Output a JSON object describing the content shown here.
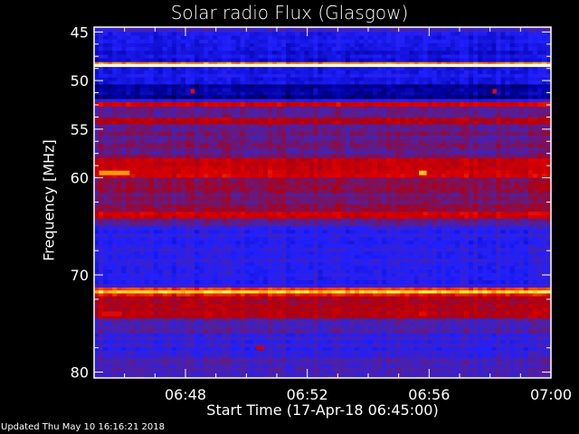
{
  "chart_data": {
    "type": "heatmap",
    "title": "Solar radio Flux (Glasgow)",
    "xlabel": "Start Time (17-Apr-18 06:45:00)",
    "ylabel": "Frequency [MHz]",
    "xlim": [
      "06:45",
      "07:00"
    ],
    "ylim": [
      80.6,
      44.5
    ],
    "x_ticks": [
      "06:48",
      "06:52",
      "06:56",
      "07:00"
    ],
    "y_ticks": [
      "45",
      "50",
      "55",
      "60",
      "70",
      "80"
    ],
    "colormap": [
      "#000000",
      "#0000a0",
      "#2020ff",
      "#5020a0",
      "#b00010",
      "#e00000",
      "#ff8000",
      "#ffff40",
      "#ffffff"
    ],
    "frequency_profile": [
      {
        "from": 44.5,
        "to": 45.0,
        "level": 0.36
      },
      {
        "from": 45.0,
        "to": 48.1,
        "level": 0.25
      },
      {
        "from": 48.1,
        "to": 48.3,
        "level": 0.8
      },
      {
        "from": 48.3,
        "to": 48.6,
        "level": 1.0
      },
      {
        "from": 48.6,
        "to": 50.4,
        "level": 0.27
      },
      {
        "from": 50.4,
        "to": 51.9,
        "level": 0.14
      },
      {
        "from": 51.9,
        "to": 52.2,
        "level": 0.3
      },
      {
        "from": 52.2,
        "to": 52.7,
        "level": 0.62
      },
      {
        "from": 52.7,
        "to": 53.8,
        "level": 0.42
      },
      {
        "from": 53.8,
        "to": 54.5,
        "level": 0.58
      },
      {
        "from": 54.5,
        "to": 58.0,
        "level": 0.45
      },
      {
        "from": 58.0,
        "to": 60.0,
        "level": 0.6
      },
      {
        "from": 60.0,
        "to": 63.5,
        "level": 0.48
      },
      {
        "from": 63.5,
        "to": 64.2,
        "level": 0.6
      },
      {
        "from": 64.2,
        "to": 65.0,
        "level": 0.42
      },
      {
        "from": 65.0,
        "to": 71.3,
        "level": 0.32
      },
      {
        "from": 71.3,
        "to": 71.6,
        "level": 0.7
      },
      {
        "from": 71.6,
        "to": 71.9,
        "level": 0.86
      },
      {
        "from": 71.9,
        "to": 72.2,
        "level": 0.66
      },
      {
        "from": 72.2,
        "to": 74.5,
        "level": 0.55
      },
      {
        "from": 74.5,
        "to": 76.0,
        "level": 0.42
      },
      {
        "from": 76.0,
        "to": 78.5,
        "level": 0.34
      },
      {
        "from": 78.5,
        "to": 80.6,
        "level": 0.38
      }
    ],
    "hot_spots": [
      {
        "time": "06:45:10",
        "duration_s": 60,
        "freq": 59.5,
        "level": 0.82
      },
      {
        "time": "06:55:40",
        "duration_s": 15,
        "freq": 59.5,
        "level": 0.85
      },
      {
        "time": "06:45:15",
        "duration_s": 40,
        "freq": 74.0,
        "level": 0.66
      },
      {
        "time": "06:55:40",
        "duration_s": 15,
        "freq": 74.0,
        "level": 0.66
      },
      {
        "time": "06:48:10",
        "duration_s": 8,
        "freq": 51.1,
        "level": 0.66
      },
      {
        "time": "06:58:05",
        "duration_s": 8,
        "freq": 51.1,
        "level": 0.66
      },
      {
        "time": "06:50:20",
        "duration_s": 15,
        "freq": 77.5,
        "level": 0.6
      }
    ],
    "grid": false
  },
  "footer": {
    "updated": "Updated Thu May 10 16:16:21 2018"
  }
}
